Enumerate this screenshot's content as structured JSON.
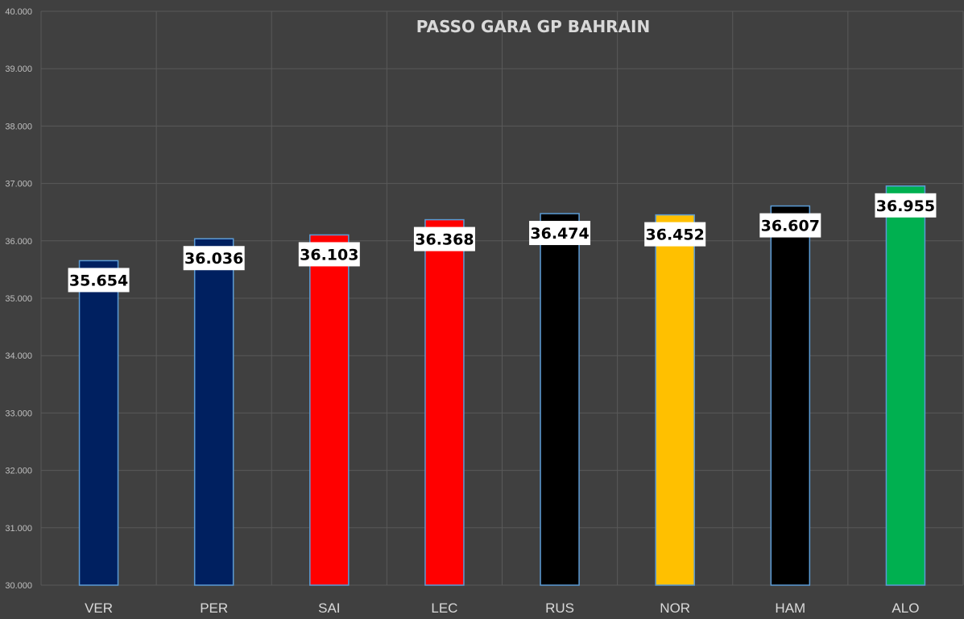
{
  "chart_data": {
    "type": "bar",
    "title": "PASSO GARA GP BAHRAIN",
    "xlabel": "",
    "ylabel": "",
    "categories": [
      "VER",
      "PER",
      "SAI",
      "LEC",
      "RUS",
      "NOR",
      "HAM",
      "ALO"
    ],
    "values": [
      35.654,
      36.036,
      36.103,
      36.368,
      36.474,
      36.452,
      36.607,
      36.955
    ],
    "value_labels": [
      "35.654",
      "36.036",
      "36.103",
      "36.368",
      "36.474",
      "36.452",
      "36.607",
      "36.955"
    ],
    "bar_colors": [
      "#002060",
      "#002060",
      "#ff0000",
      "#ff0000",
      "#000000",
      "#ffc000",
      "#000000",
      "#00b050"
    ],
    "ylim": [
      30,
      40
    ],
    "yticks": [
      "30.000",
      "31.000",
      "32.000",
      "33.000",
      "34.000",
      "35.000",
      "36.000",
      "37.000",
      "38.000",
      "39.000",
      "40.000"
    ],
    "grid": true,
    "legend": "none"
  },
  "colors": {
    "background": "#404040",
    "gridline": "#595959",
    "bar_outline": "#5b9bd5",
    "label_box": "#ffffff"
  }
}
